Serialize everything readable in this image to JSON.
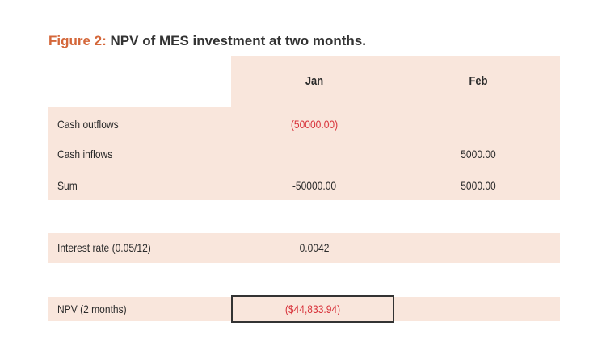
{
  "figure": {
    "prefix": "Figure 2:",
    "title": "NPV of MES investment at two months."
  },
  "columns": {
    "jan": "Jan",
    "feb": "Feb"
  },
  "rows": [
    {
      "label": "Cash outflows",
      "jan": "(50000.00)",
      "feb": ""
    },
    {
      "label": "Cash inflows",
      "jan": "",
      "feb": "5000.00"
    },
    {
      "label": "Sum",
      "jan": "-50000.00",
      "feb": "5000.00"
    }
  ],
  "interest": {
    "label": "Interest rate (0.05/12)",
    "value": "0.0042"
  },
  "npv": {
    "label": "NPV (2 months)",
    "value": "($44,833.94)"
  },
  "colors": {
    "panel": "#f9e6dc",
    "accent": "#d4673a",
    "negative": "#d8323a"
  }
}
